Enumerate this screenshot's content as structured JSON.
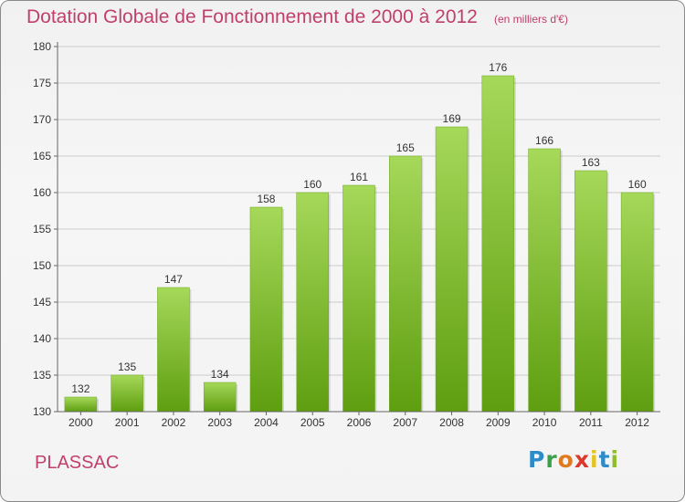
{
  "header": {
    "title": "Dotation Globale de Fonctionnement de 2000 à 2012",
    "subtitle": "(en milliers d'€)"
  },
  "footer": {
    "commune": "PLASSAC",
    "logo_letters": [
      "P",
      "r",
      "o",
      "x",
      "i",
      "t",
      "i"
    ],
    "logo_colors": [
      "#2e8bc9",
      "#3aa14a",
      "#e07a1f",
      "#d93a2b",
      "#e8c21d",
      "#2e8bc9",
      "#8fbe2a"
    ]
  },
  "colors": {
    "bar_top": "#a6d85a",
    "bar_bottom": "#5e9e10",
    "grid": "#cccccc",
    "axis": "#666666",
    "title": "#c0406a"
  },
  "chart_data": {
    "type": "bar",
    "title": "Dotation Globale de Fonctionnement de 2000 à 2012",
    "subtitle": "(en milliers d'€)",
    "xlabel": "",
    "ylabel": "",
    "categories": [
      "2000",
      "2001",
      "2002",
      "2003",
      "2004",
      "2005",
      "2006",
      "2007",
      "2008",
      "2009",
      "2010",
      "2011",
      "2012"
    ],
    "values": [
      132,
      135,
      147,
      134,
      158,
      160,
      161,
      165,
      169,
      176,
      166,
      163,
      160
    ],
    "ylim": [
      130,
      180
    ],
    "yticks": [
      130,
      135,
      140,
      145,
      150,
      155,
      160,
      165,
      170,
      175,
      180
    ],
    "grid": true,
    "data_labels": true
  }
}
